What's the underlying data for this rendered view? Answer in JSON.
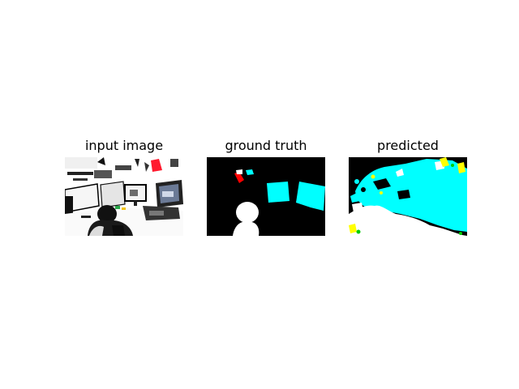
{
  "figure": {
    "panels": [
      {
        "title": "input image"
      },
      {
        "title": "ground truth"
      },
      {
        "title": "predicted"
      }
    ],
    "colors": {
      "background": "#ffffff",
      "mask_background": "#000000",
      "class_person": "#ffffff",
      "class_monitor": "#00ffff",
      "class_red_object": "#ff0000",
      "class_yellow": "#ffff00",
      "class_green": "#00cc00"
    }
  }
}
